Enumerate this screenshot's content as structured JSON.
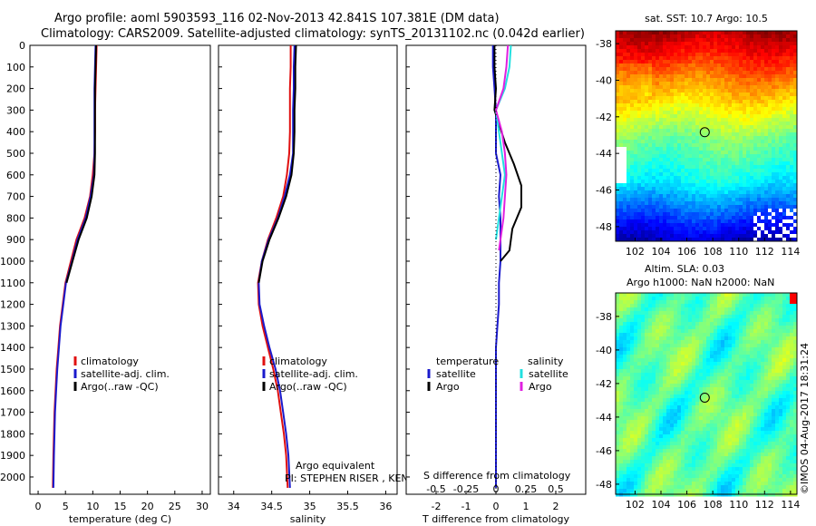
{
  "title": {
    "line1": "Argo profile: aoml 5903593_116 02-Nov-2013 42.841S 107.381E (DM data)",
    "line2": "Climatology: CARS2009. Satellite-adjusted climatology: synTS_20131102.nc (0.042d earlier)"
  },
  "colors": {
    "climatology": "#e01010",
    "satellite": "#1a1acc",
    "argo": "#000000",
    "satellite_s": "#22e0e0",
    "argo_s": "#e020e0"
  },
  "chart_data": [
    {
      "id": "temperature",
      "type": "line",
      "xlabel": "temperature (deg C)",
      "xlim": [
        -1.5,
        31.5
      ],
      "xticks": [
        "0",
        "5",
        "10",
        "15",
        "20",
        "25",
        "30"
      ],
      "ylim": [
        2080,
        0
      ],
      "yticks": [
        "0",
        "100",
        "200",
        "300",
        "400",
        "500",
        "600",
        "700",
        "800",
        "900",
        "1000",
        "1100",
        "1200",
        "1300",
        "1400",
        "1500",
        "1600",
        "1700",
        "1800",
        "1900",
        "2000"
      ],
      "legend": [
        "climatology",
        "satellite-adj. clim.",
        "Argo(..raw -QC)"
      ],
      "series": [
        {
          "name": "climatology",
          "x": [
            10.7,
            10.6,
            10.5,
            10.4,
            10.4,
            10.3,
            10.0,
            9.5,
            8.5,
            7.0,
            6.0,
            5.0,
            4.5,
            4.0,
            3.7,
            3.4,
            3.2,
            3.0,
            2.9,
            2.8,
            2.7
          ],
          "y": [
            0,
            100,
            200,
            300,
            400,
            500,
            600,
            700,
            800,
            900,
            1000,
            1100,
            1200,
            1300,
            1400,
            1500,
            1600,
            1700,
            1800,
            1900,
            2050
          ]
        },
        {
          "name": "satellite-adj. clim.",
          "x": [
            10.5,
            10.4,
            10.3,
            10.3,
            10.3,
            10.3,
            10.2,
            9.6,
            8.7,
            7.2,
            6.2,
            5.1,
            4.6,
            4.1,
            3.8,
            3.5,
            3.3,
            3.1,
            3.0,
            2.9,
            2.8
          ],
          "y": [
            0,
            100,
            200,
            300,
            400,
            500,
            600,
            700,
            800,
            900,
            1000,
            1100,
            1200,
            1300,
            1400,
            1500,
            1600,
            1700,
            1800,
            1900,
            2050
          ]
        },
        {
          "name": "Argo(..raw -QC)",
          "x": [
            10.6,
            10.5,
            10.4,
            10.4,
            10.4,
            10.4,
            10.3,
            9.8,
            8.9,
            7.4,
            6.3,
            5.2
          ],
          "y": [
            0,
            100,
            200,
            300,
            400,
            500,
            600,
            700,
            800,
            900,
            1000,
            1100
          ]
        }
      ]
    },
    {
      "id": "salinity",
      "type": "line",
      "xlabel": "salinity",
      "xlim": [
        33.8,
        36.15
      ],
      "xticks": [
        "34",
        "34.5",
        "35",
        "35.5",
        "36"
      ],
      "ylim": [
        2080,
        0
      ],
      "legend": [
        "climatology",
        "satellite-adj. clim.",
        "Argo(..raw -QC)"
      ],
      "annotation": [
        "Argo equivalent",
        "PI: STEPHEN RISER , KENNETH JOHNSON"
      ],
      "series": [
        {
          "name": "climatology",
          "x": [
            34.75,
            34.75,
            34.74,
            34.74,
            34.74,
            34.73,
            34.7,
            34.65,
            34.56,
            34.45,
            34.37,
            34.32,
            34.33,
            34.38,
            34.45,
            34.52,
            34.58,
            34.62,
            34.66,
            34.69,
            34.71
          ],
          "y": [
            0,
            100,
            200,
            300,
            400,
            500,
            600,
            700,
            800,
            900,
            1000,
            1100,
            1200,
            1300,
            1400,
            1500,
            1600,
            1700,
            1800,
            1900,
            2050
          ]
        },
        {
          "name": "satellite-adj. clim.",
          "x": [
            34.8,
            34.79,
            34.79,
            34.78,
            34.78,
            34.78,
            34.74,
            34.67,
            34.58,
            34.46,
            34.37,
            34.33,
            34.34,
            34.4,
            34.47,
            34.55,
            34.61,
            34.65,
            34.69,
            34.72,
            34.74
          ],
          "y": [
            0,
            100,
            200,
            300,
            400,
            500,
            600,
            700,
            800,
            900,
            1000,
            1100,
            1200,
            1300,
            1400,
            1500,
            1600,
            1700,
            1800,
            1900,
            2050
          ]
        },
        {
          "name": "Argo(..raw -QC)",
          "x": [
            34.82,
            34.81,
            34.81,
            34.8,
            34.8,
            34.79,
            34.76,
            34.69,
            34.59,
            34.47,
            34.38,
            34.33
          ],
          "y": [
            0,
            100,
            200,
            300,
            400,
            500,
            600,
            700,
            800,
            900,
            1000,
            1100
          ]
        }
      ]
    },
    {
      "id": "difference",
      "type": "line",
      "xlabel": "T difference from climatology",
      "xlabel_top": "S difference from climatology",
      "xlim": [
        -3,
        3
      ],
      "xticks": [
        "-2",
        "-1",
        "0",
        "1",
        "2"
      ],
      "xticks_s": [
        "-0.5",
        "-0.25",
        "0",
        "0.25",
        "0.5"
      ],
      "ylim": [
        2080,
        0
      ],
      "legend_headers": [
        "temperature",
        "salinity"
      ],
      "legend": [
        "satellite",
        "Argo",
        "satellite",
        "Argo"
      ],
      "series": [
        {
          "name": "T satellite",
          "x": [
            -0.1,
            -0.1,
            -0.05,
            0.0,
            0.0,
            0.0,
            0.15,
            0.1,
            0.15,
            0.15,
            0.15,
            0.1,
            0.1,
            0.05,
            0.0,
            0.0,
            0.0,
            0.0,
            0.0,
            0.0,
            0.0
          ],
          "y": [
            0,
            100,
            200,
            300,
            400,
            500,
            600,
            700,
            800,
            900,
            1000,
            1100,
            1200,
            1300,
            1400,
            1500,
            1600,
            1700,
            1800,
            1900,
            2050
          ]
        },
        {
          "name": "T Argo",
          "x": [
            -0.05,
            -0.05,
            0.0,
            -0.05,
            0.3,
            0.6,
            0.85,
            0.85,
            0.55,
            0.45,
            0.15
          ],
          "y": [
            0,
            100,
            200,
            300,
            450,
            550,
            650,
            750,
            850,
            950,
            1000
          ]
        },
        {
          "name": "S satellite",
          "x": [
            0.5,
            0.45,
            0.3,
            0.0,
            0.1,
            0.2,
            0.3,
            0.2,
            0.1,
            0.0
          ],
          "y": [
            0,
            100,
            200,
            300,
            400,
            500,
            600,
            700,
            800,
            900
          ]
        },
        {
          "name": "S Argo",
          "x": [
            0.4,
            0.35,
            0.25,
            0.0,
            0.2,
            0.3,
            0.35,
            0.3,
            0.25,
            0.1
          ],
          "y": [
            0,
            100,
            200,
            300,
            400,
            500,
            600,
            700,
            800,
            950
          ]
        }
      ]
    }
  ],
  "maps": [
    {
      "id": "sst",
      "title": "sat. SST: 10.7 Argo: 10.5",
      "xticks": [
        "102",
        "104",
        "106",
        "108",
        "110",
        "112",
        "114"
      ],
      "yticks": [
        "-38",
        "-40",
        "-42",
        "-44",
        "-46",
        "-48"
      ],
      "xlim": [
        100.5,
        114.5
      ],
      "ylim": [
        -37.3,
        -48.8
      ],
      "marker": [
        107.381,
        -42.841
      ],
      "colormap": "jet"
    },
    {
      "id": "sla",
      "title_line1": "Altim. SLA: 0.03",
      "title_line2": "Argo h1000: NaN h2000: NaN",
      "xticks": [
        "102",
        "104",
        "106",
        "108",
        "110",
        "112",
        "114"
      ],
      "yticks": [
        "-38",
        "-40",
        "-42",
        "-44",
        "-46",
        "-48"
      ],
      "xlim": [
        100.5,
        114.5
      ],
      "ylim": [
        -36.6,
        -48.6
      ],
      "marker": [
        107.381,
        -42.841
      ],
      "colormap": "jet"
    }
  ],
  "watermark": "©IMOS 04-Aug-2017 18:31:24"
}
